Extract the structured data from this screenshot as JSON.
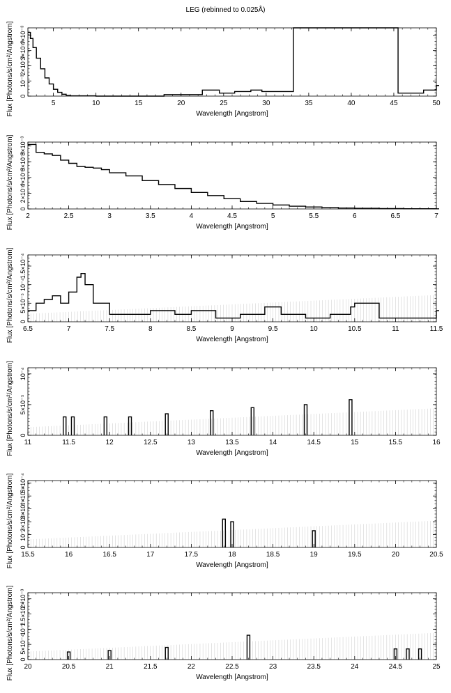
{
  "title": "LEG (rebinned to 0.025Å)",
  "chart_data": [
    {
      "type": "line",
      "title": "",
      "xlabel": "Wavelength [Angstrom]",
      "ylabel": "Flux [Photons/s/cm²/Angstrom]",
      "xlim": [
        2,
        50
      ],
      "ylim": [
        0,
        0.0045
      ],
      "x_ticks": [
        5,
        10,
        15,
        20,
        25,
        30,
        35,
        40,
        45,
        50
      ],
      "x_tick_labels": [
        "5",
        "10",
        "15",
        "20",
        "25",
        "30",
        "35",
        "40",
        "45",
        "50"
      ],
      "y_ticks": [
        0,
        0.001,
        0.002,
        0.003,
        0.004
      ],
      "y_tick_labels": [
        "0",
        "10⁻³",
        "2×10⁻³",
        "3×10⁻³",
        "4×10⁻³"
      ],
      "series": [
        {
          "x": [
            2.0,
            2.3,
            2.6,
            3.0,
            3.5,
            4.0,
            4.5,
            5.0,
            5.5,
            6.0,
            6.5,
            7.0,
            10,
            18,
            22.5,
            24.5,
            26.3,
            28.2,
            29.5,
            33.2,
            35.5,
            38.5,
            40.5,
            43,
            45.5,
            48.5,
            50
          ],
          "y": [
            0.0042,
            0.0038,
            0.0032,
            0.0025,
            0.0018,
            0.0012,
            0.0008,
            0.00045,
            0.00025,
            0.00012,
            5e-05,
            2e-05,
            0.0,
            0.0001,
            0.0004,
            0.0002,
            0.0003,
            0.0004,
            0.0003,
            0.0045,
            0.0045,
            0.0045,
            0.0045,
            0.0045,
            0.0002,
            0.0004,
            0.0007
          ]
        }
      ]
    },
    {
      "type": "line",
      "title": "",
      "xlabel": "Wavelength [Angstrom]",
      "ylabel": "Flux [Photons/s/cm²/Angstrom]",
      "xlim": [
        2,
        7
      ],
      "ylim": [
        0,
        0.0085
      ],
      "x_ticks": [
        2,
        2.5,
        3,
        3.5,
        4,
        4.5,
        5,
        5.5,
        6,
        6.5,
        7
      ],
      "x_tick_labels": [
        "2",
        "2.5",
        "3",
        "3.5",
        "4",
        "4.5",
        "5",
        "5.5",
        "6",
        "6.5",
        "7"
      ],
      "y_ticks": [
        0,
        0.002,
        0.004,
        0.006,
        0.008
      ],
      "y_tick_labels": [
        "0",
        "2×10⁻³",
        "4×10⁻³",
        "6×10⁻³",
        "8×10⁻³"
      ],
      "series": [
        {
          "x": [
            2.0,
            2.1,
            2.2,
            2.3,
            2.4,
            2.5,
            2.6,
            2.7,
            2.8,
            2.9,
            3.0,
            3.2,
            3.4,
            3.6,
            3.8,
            4.0,
            4.2,
            4.4,
            4.6,
            4.8,
            5.0,
            5.2,
            5.4,
            5.6,
            5.8,
            6.0,
            6.3,
            6.6,
            7.0
          ],
          "y": [
            0.0082,
            0.0072,
            0.007,
            0.0068,
            0.0062,
            0.0058,
            0.0054,
            0.0053,
            0.0052,
            0.005,
            0.0046,
            0.0042,
            0.0036,
            0.0031,
            0.0026,
            0.0021,
            0.0017,
            0.0013,
            0.00095,
            0.0007,
            0.0005,
            0.00035,
            0.00025,
            0.00018,
            0.00012,
            8e-05,
            5e-05,
            3e-05,
            2e-05
          ]
        }
      ]
    },
    {
      "type": "line",
      "title": "",
      "xlabel": "Wavelength [Angstrom]",
      "ylabel": "Flux [Photons/s/cm²/Angstrom]",
      "xlim": [
        6.5,
        11.5
      ],
      "ylim": [
        0,
        0.00018
      ],
      "x_ticks": [
        6.5,
        7,
        7.5,
        8,
        8.5,
        9,
        9.5,
        10,
        10.5,
        11,
        11.5
      ],
      "x_tick_labels": [
        "6.5",
        "7",
        "7.5",
        "8",
        "8.5",
        "9",
        "9.5",
        "10",
        "10.5",
        "11",
        "11.5"
      ],
      "y_ticks": [
        0,
        5e-05,
        0.0001,
        0.00015
      ],
      "y_tick_labels": [
        "0",
        "5×10⁻⁵",
        "10⁻⁴",
        "1.5×10⁻⁴"
      ],
      "series": [
        {
          "x": [
            6.5,
            6.6,
            6.7,
            6.8,
            6.9,
            7.0,
            7.1,
            7.15,
            7.2,
            7.3,
            7.5,
            7.7,
            8.0,
            8.3,
            8.5,
            8.8,
            9.1,
            9.4,
            9.6,
            9.9,
            10.2,
            10.45,
            10.5,
            10.8,
            11.2,
            11.5
          ],
          "y": [
            3e-05,
            5e-05,
            6e-05,
            7e-05,
            5e-05,
            8e-05,
            0.00012,
            0.00013,
            0.0001,
            5e-05,
            2e-05,
            2e-05,
            3e-05,
            2e-05,
            3e-05,
            1e-05,
            2e-05,
            4e-05,
            2e-05,
            1e-05,
            2e-05,
            4e-05,
            5e-05,
            1e-05,
            1e-05,
            3e-05
          ]
        }
      ]
    },
    {
      "type": "line",
      "title": "",
      "xlabel": "Wavelength [Angstrom]",
      "ylabel": "Flux [Photons/s/cm²/Angstrom]",
      "xlim": [
        11,
        16
      ],
      "ylim": [
        0,
        0.00011
      ],
      "x_ticks": [
        11,
        11.5,
        12,
        12.5,
        13,
        13.5,
        14,
        14.5,
        15,
        15.5,
        16
      ],
      "x_tick_labels": [
        "11",
        "11.5",
        "12",
        "12.5",
        "13",
        "13.5",
        "14",
        "14.5",
        "15",
        "15.5",
        "16"
      ],
      "y_ticks": [
        0,
        5e-05,
        0.0001
      ],
      "y_tick_labels": [
        "0",
        "5×10⁻⁵",
        "10⁻⁴"
      ],
      "series": [
        {
          "x": [
            11.45,
            11.55,
            11.95,
            12.25,
            12.7,
            13.25,
            13.75,
            14.4,
            14.95
          ],
          "y": [
            3e-05,
            3e-05,
            3e-05,
            3e-05,
            3.5e-05,
            4e-05,
            4.5e-05,
            5e-05,
            5.8e-05
          ]
        }
      ]
    },
    {
      "type": "line",
      "title": "",
      "xlabel": "Wavelength [Angstrom]",
      "ylabel": "Flux [Photons/s/cm²/Angstrom]",
      "xlim": [
        15.5,
        20.5
      ],
      "ylim": [
        0,
        0.00052
      ],
      "x_ticks": [
        15.5,
        16,
        16.5,
        17,
        17.5,
        18,
        18.5,
        19,
        19.5,
        20,
        20.5
      ],
      "x_tick_labels": [
        "15.5",
        "16",
        "16.5",
        "17",
        "17.5",
        "18",
        "18.5",
        "19",
        "19.5",
        "20",
        "20.5"
      ],
      "y_ticks": [
        0,
        0.0001,
        0.0002,
        0.0003,
        0.0004,
        0.0005
      ],
      "y_tick_labels": [
        "0",
        "10⁻⁴",
        "2×10⁻⁴",
        "3×10⁻⁴",
        "4×10⁻⁴",
        "5×10⁻⁴"
      ],
      "series": [
        {
          "x": [
            17.9,
            18.0,
            19.0
          ],
          "y": [
            0.00022,
            0.0002,
            0.00013
          ]
        }
      ]
    },
    {
      "type": "line",
      "title": "",
      "xlabel": "Wavelength [Angstrom]",
      "ylabel": "Flux [Photons/s/cm²/Angstrom]",
      "xlim": [
        20,
        25
      ],
      "ylim": [
        0,
        0.0022
      ],
      "x_ticks": [
        20,
        20.5,
        21,
        21.5,
        22,
        22.5,
        23,
        23.5,
        24,
        24.5,
        25
      ],
      "x_tick_labels": [
        "20",
        "20.5",
        "21",
        "21.5",
        "22",
        "22.5",
        "23",
        "23.5",
        "24",
        "24.5",
        "25"
      ],
      "y_ticks": [
        0,
        0.0005,
        0.001,
        0.0015,
        0.002
      ],
      "y_tick_labels": [
        "0",
        "5×10⁻⁴",
        "10⁻³",
        "1.5×10⁻³",
        "2×10⁻³"
      ],
      "series": [
        {
          "x": [
            20.5,
            21.0,
            21.7,
            22.7,
            24.5,
            24.65,
            24.8
          ],
          "y": [
            0.00025,
            0.0003,
            0.0004,
            0.0008,
            0.00035,
            0.00035,
            0.00035
          ]
        }
      ]
    }
  ]
}
